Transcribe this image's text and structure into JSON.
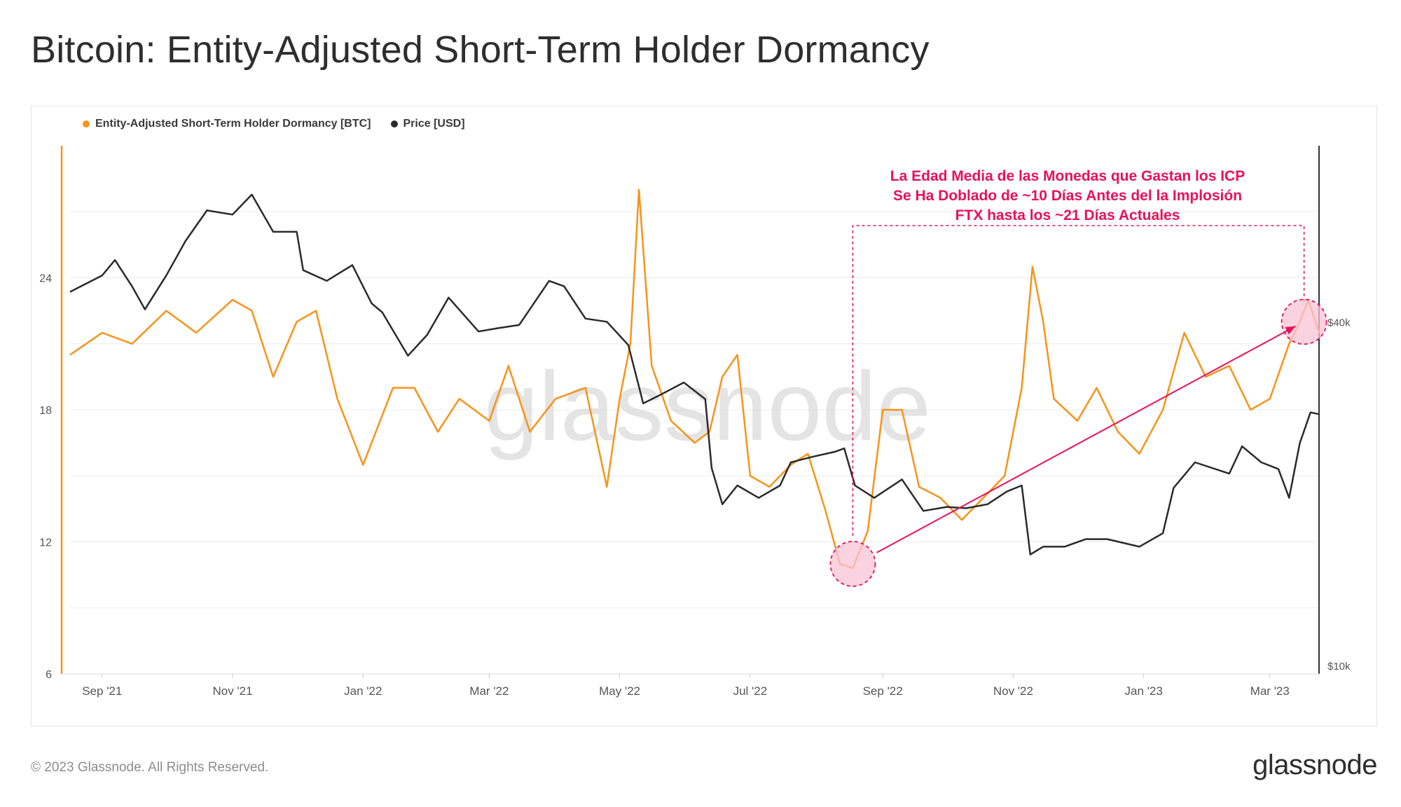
{
  "title": "Bitcoin: Entity-Adjusted Short-Term Holder Dormancy",
  "footer": {
    "copyright": "© 2023 Glassnode. All Rights Reserved.",
    "logo_text": "glassnode"
  },
  "watermark": "glassnode",
  "colors": {
    "dormancy": "#f7931a",
    "price": "#2b2b2b",
    "annotation": "#e8115b",
    "highlight_fill": "#f9c4d6",
    "grid": "#ececec"
  },
  "chart_data": {
    "type": "line",
    "title": "Bitcoin: Entity-Adjusted Short-Term Holder Dormancy",
    "legend": {
      "placement": "top-left",
      "entries": [
        "Entity-Adjusted Short-Term Holder Dormancy [BTC]",
        "Price [USD]"
      ]
    },
    "x_tick_labels": [
      "Sep '21",
      "Nov '21",
      "Jan '22",
      "Mar '22",
      "May '22",
      "Jul '22",
      "Sep '22",
      "Nov '22",
      "Jan '23",
      "Mar '23"
    ],
    "x_range": [
      "2021-08-17",
      "2023-03-24"
    ],
    "y_left": {
      "tick_labels": [
        "6",
        "12",
        "18",
        "24"
      ],
      "range": [
        6,
        30
      ]
    },
    "y_right": {
      "tick_labels": [
        "$10k",
        "$40k"
      ],
      "range_usd": [
        10000,
        80000
      ],
      "scale": "log"
    },
    "grid": true,
    "series": [
      {
        "name": "Entity-Adjusted Short-Term Holder Dormancy [BTC]",
        "axis": "left",
        "x": [
          "2021-08-17",
          "2021-09-01",
          "2021-09-15",
          "2021-10-01",
          "2021-10-15",
          "2021-11-01",
          "2021-11-10",
          "2021-11-20",
          "2021-12-01",
          "2021-12-10",
          "2021-12-20",
          "2022-01-01",
          "2022-01-15",
          "2022-01-25",
          "2022-02-05",
          "2022-02-15",
          "2022-03-01",
          "2022-03-10",
          "2022-03-20",
          "2022-04-01",
          "2022-04-15",
          "2022-04-25",
          "2022-05-01",
          "2022-05-06",
          "2022-05-10",
          "2022-05-16",
          "2022-05-25",
          "2022-06-05",
          "2022-06-12",
          "2022-06-18",
          "2022-06-25",
          "2022-07-01",
          "2022-07-10",
          "2022-07-20",
          "2022-07-28",
          "2022-08-05",
          "2022-08-12",
          "2022-08-18",
          "2022-08-25",
          "2022-09-01",
          "2022-09-10",
          "2022-09-18",
          "2022-09-28",
          "2022-10-08",
          "2022-10-18",
          "2022-10-28",
          "2022-11-05",
          "2022-11-10",
          "2022-11-15",
          "2022-11-20",
          "2022-12-01",
          "2022-12-10",
          "2022-12-20",
          "2022-12-30",
          "2023-01-10",
          "2023-01-20",
          "2023-01-30",
          "2023-02-10",
          "2023-02-20",
          "2023-03-01",
          "2023-03-10",
          "2023-03-15",
          "2023-03-19",
          "2023-03-24"
        ],
        "values": [
          20.5,
          21.5,
          21,
          22.5,
          21.5,
          23,
          22.5,
          19.5,
          22,
          22.5,
          18.5,
          15.5,
          19,
          19,
          17,
          18.5,
          17.5,
          20,
          17,
          18.5,
          19,
          14.5,
          18.5,
          21,
          28,
          20,
          17.5,
          16.5,
          17,
          19.5,
          20.5,
          15,
          14.5,
          15.5,
          16,
          13.5,
          11,
          10.8,
          12.5,
          18,
          18,
          14.5,
          14,
          13,
          14,
          15,
          19,
          24.5,
          22,
          18.5,
          17.5,
          19,
          17,
          16,
          18,
          21.5,
          19.5,
          20,
          18,
          18.5,
          21,
          22,
          23,
          21.5
        ]
      },
      {
        "name": "Price [USD]",
        "axis": "right",
        "x": [
          "2021-08-17",
          "2021-09-01",
          "2021-09-07",
          "2021-09-15",
          "2021-09-21",
          "2021-10-01",
          "2021-10-10",
          "2021-10-20",
          "2021-11-01",
          "2021-11-10",
          "2021-11-20",
          "2021-12-01",
          "2021-12-04",
          "2021-12-15",
          "2021-12-27",
          "2022-01-05",
          "2022-01-10",
          "2022-01-22",
          "2022-01-31",
          "2022-02-10",
          "2022-02-24",
          "2022-03-05",
          "2022-03-15",
          "2022-03-29",
          "2022-04-05",
          "2022-04-15",
          "2022-04-25",
          "2022-05-05",
          "2022-05-10",
          "2022-05-12",
          "2022-05-20",
          "2022-05-31",
          "2022-06-10",
          "2022-06-13",
          "2022-06-18",
          "2022-06-25",
          "2022-07-05",
          "2022-07-15",
          "2022-07-20",
          "2022-07-30",
          "2022-08-10",
          "2022-08-14",
          "2022-08-19",
          "2022-08-28",
          "2022-09-10",
          "2022-09-20",
          "2022-10-01",
          "2022-10-10",
          "2022-10-20",
          "2022-10-29",
          "2022-11-05",
          "2022-11-09",
          "2022-11-15",
          "2022-11-25",
          "2022-12-05",
          "2022-12-15",
          "2022-12-30",
          "2023-01-10",
          "2023-01-15",
          "2023-01-25",
          "2023-02-10",
          "2023-02-16",
          "2023-02-25",
          "2023-03-05",
          "2023-03-10",
          "2023-03-15",
          "2023-03-20",
          "2023-03-24"
        ],
        "values": [
          45000,
          48000,
          51000,
          46000,
          42000,
          48000,
          55000,
          62000,
          61000,
          66000,
          57000,
          57000,
          49000,
          47000,
          50000,
          43000,
          41500,
          35000,
          38000,
          44000,
          38500,
          39000,
          39500,
          47000,
          46000,
          40500,
          40000,
          36500,
          31000,
          29000,
          30000,
          31500,
          29500,
          22500,
          19500,
          21000,
          20000,
          21000,
          23000,
          23500,
          24000,
          24300,
          21000,
          20000,
          21500,
          19000,
          19300,
          19200,
          19500,
          20500,
          21000,
          16000,
          16500,
          16500,
          17000,
          17000,
          16500,
          17400,
          20800,
          23000,
          22000,
          24500,
          23000,
          22400,
          20000,
          24800,
          28000,
          27800
        ]
      }
    ],
    "annotations": [
      {
        "type": "text",
        "lines": [
          "La Edad Media de las Monedas que Gastan los ICP",
          "Se Ha Doblado de ~10 Días Antes del la Implosión",
          "FTX hasta los ~21 Días Actuales"
        ]
      },
      {
        "type": "circle",
        "date": "2022-08-18",
        "value": 11
      },
      {
        "type": "circle",
        "date": "2023-03-17",
        "value": 22
      },
      {
        "type": "arrow",
        "from": [
          "2022-08-18",
          11
        ],
        "to": [
          "2023-03-13",
          21.8
        ]
      },
      {
        "type": "dashed-box",
        "from_date": "2022-08-18",
        "to_date": "2023-03-17"
      }
    ]
  }
}
